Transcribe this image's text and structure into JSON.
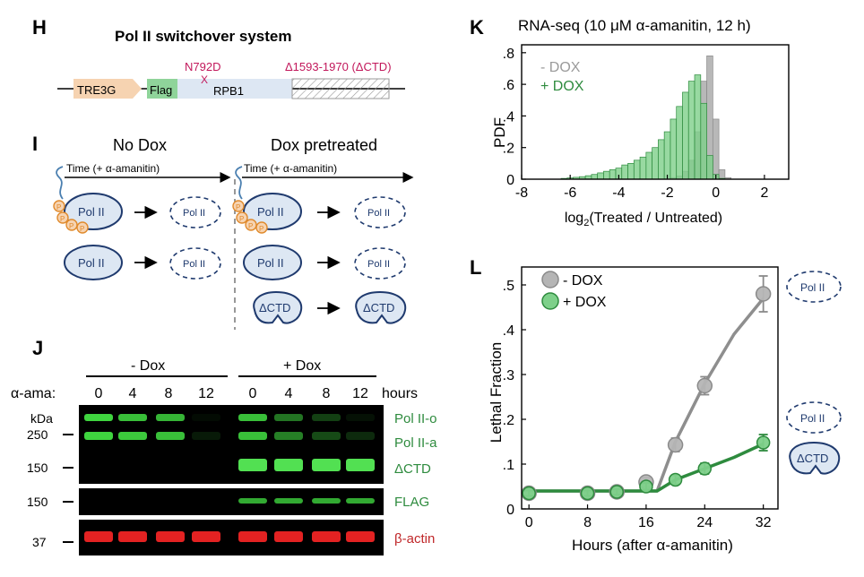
{
  "panel_H": {
    "letter": "H",
    "title": "Pol II switchover system",
    "tre3g": "TRE3G",
    "flag": "Flag",
    "rpb1": "RPB1",
    "mutation": "N792D",
    "mutation_mark": "X",
    "deletion": "Δ1593-1970 (ΔCTD)"
  },
  "panel_I": {
    "letter": "I",
    "no_dox": "No Dox",
    "dox_pre": "Dox pretreated",
    "time_label": "Time (+ α-amanitin)",
    "pol2": "Pol II",
    "dctd": "ΔCTD",
    "p": "P"
  },
  "panel_J": {
    "letter": "J",
    "minus_dox": "- Dox",
    "plus_dox": "+ Dox",
    "ama_label": "α-ama:",
    "lanes": [
      "0",
      "4",
      "8",
      "12",
      "0",
      "4",
      "8",
      "12"
    ],
    "hours": "hours",
    "kda": "kDa",
    "mw": [
      "250",
      "150",
      "150",
      "37"
    ],
    "band_labels": [
      "Pol II-o",
      "Pol II-a",
      "ΔCTD",
      "FLAG",
      "β-actin"
    ]
  },
  "panel_K": {
    "letter": "K"
  },
  "panel_L": {
    "letter": "L",
    "pol2": "Pol II",
    "dctd": "ΔCTD"
  },
  "colors": {
    "green": "#2e8b3e",
    "green_light": "#8fd49a",
    "gray": "#9a9a9a",
    "navy": "#1f3a6e",
    "orange": "#e08a2c",
    "magenta": "#c2185b",
    "red_label": "#c0282a"
  },
  "chart_data": [
    {
      "type": "bar",
      "title": "RNA-seq (10 μM α-amanitin, 12 h)",
      "xlabel": "log2(Treated / Untreated)",
      "ylabel": "PDF",
      "xlim": [
        -8,
        3
      ],
      "ylim": [
        0,
        0.85
      ],
      "xticks": [
        "-8",
        "-6",
        "-4",
        "-2",
        "0",
        "2"
      ],
      "yticks": [
        "0",
        ".2",
        ".4",
        ".6",
        ".8"
      ],
      "legend": "top-left",
      "x": [
        -6.25,
        -6.0,
        -5.75,
        -5.5,
        -5.25,
        -5.0,
        -4.75,
        -4.5,
        -4.25,
        -4.0,
        -3.75,
        -3.5,
        -3.25,
        -3.0,
        -2.75,
        -2.5,
        -2.25,
        -2.0,
        -1.75,
        -1.5,
        -1.25,
        -1.0,
        -0.75,
        -0.5,
        -0.25,
        0.0,
        0.25,
        0.5
      ],
      "series": [
        {
          "name": "- DOX",
          "values": [
            0,
            0,
            0,
            0,
            0,
            0,
            0,
            0,
            0,
            0,
            0,
            0,
            0,
            0,
            0,
            0,
            0,
            0,
            0.01,
            0.02,
            0.05,
            0.12,
            0.3,
            0.62,
            0.78,
            0.38,
            0.06,
            0.01
          ]
        },
        {
          "name": "+ DOX",
          "values": [
            0.005,
            0.008,
            0.012,
            0.016,
            0.022,
            0.03,
            0.04,
            0.05,
            0.06,
            0.07,
            0.09,
            0.1,
            0.12,
            0.14,
            0.17,
            0.2,
            0.25,
            0.3,
            0.38,
            0.46,
            0.55,
            0.62,
            0.66,
            0.48,
            0.15,
            0.03,
            0.005,
            0
          ]
        }
      ]
    },
    {
      "type": "line",
      "xlabel": "Hours (after α-amanitin)",
      "ylabel": "Lethal Fraction",
      "xlim": [
        -1,
        34
      ],
      "ylim": [
        0,
        0.54
      ],
      "xticks": [
        "0",
        "8",
        "16",
        "24",
        "32"
      ],
      "yticks": [
        "0",
        ".1",
        ".2",
        ".3",
        ".4",
        ".5"
      ],
      "legend": "top-left",
      "series": [
        {
          "name": "- DOX",
          "x": [
            0,
            8,
            12,
            16,
            20,
            24,
            32
          ],
          "y": [
            0.035,
            0.035,
            0.038,
            0.06,
            0.143,
            0.275,
            0.48
          ],
          "err": [
            0.008,
            0.008,
            0.01,
            0.01,
            0.015,
            0.02,
            0.04
          ]
        },
        {
          "name": "+ DOX",
          "x": [
            0,
            8,
            12,
            16,
            20,
            24,
            32
          ],
          "y": [
            0.035,
            0.035,
            0.038,
            0.05,
            0.065,
            0.09,
            0.148
          ],
          "err": [
            0.006,
            0.006,
            0.006,
            0.008,
            0.01,
            0.012,
            0.018
          ]
        }
      ],
      "fits": [
        {
          "name": "- DOX fit",
          "x": [
            0,
            17.5,
            20,
            24,
            28,
            32
          ],
          "y": [
            0.04,
            0.04,
            0.15,
            0.28,
            0.39,
            0.47
          ]
        },
        {
          "name": "+ DOX fit",
          "x": [
            0,
            17.5,
            20,
            24,
            28,
            32
          ],
          "y": [
            0.04,
            0.04,
            0.065,
            0.09,
            0.115,
            0.145
          ]
        }
      ]
    }
  ]
}
